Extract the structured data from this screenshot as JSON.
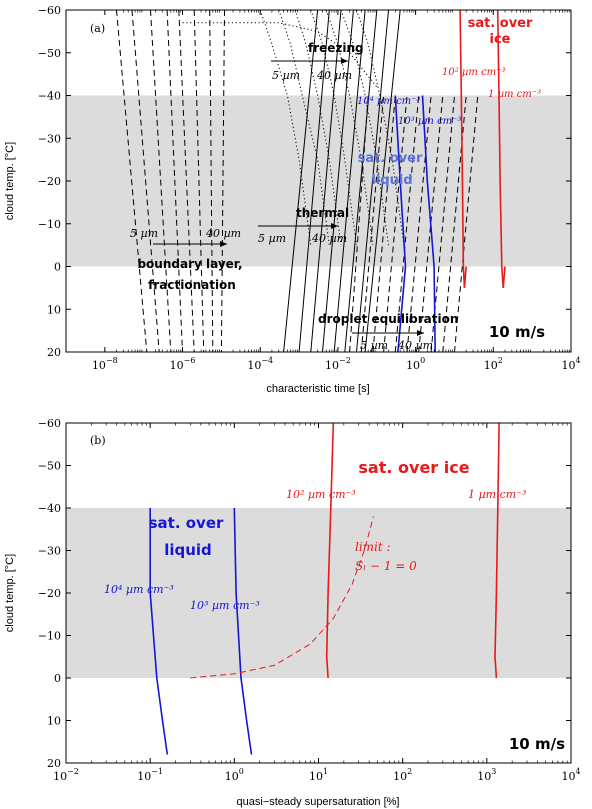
{
  "charts": [
    {
      "label": "(a)",
      "xlabel": "characteristic time [s]",
      "ylabel": "cloud temp. [°C]",
      "xscale": "log",
      "xlim": [
        1e-09,
        10000
      ],
      "ylim": [
        20,
        -60
      ],
      "xticks": [
        1e-08,
        1e-06,
        0.0001,
        0.01,
        1,
        100,
        10000
      ],
      "xtick_labels": [
        [
          "10",
          "−8"
        ],
        [
          "10",
          "−6"
        ],
        [
          "10",
          "−4"
        ],
        [
          "10",
          "−2"
        ],
        [
          "10",
          "0"
        ],
        [
          "10",
          "2"
        ],
        [
          "10",
          "4"
        ]
      ],
      "yticks": [
        -60,
        -50,
        -40,
        -30,
        -20,
        -10,
        0,
        10,
        20
      ],
      "ytick_labels": [
        "−60",
        "−50",
        "−40",
        "−30",
        "−20",
        "−10",
        "0",
        "10",
        "20"
      ],
      "shade_range": [
        0,
        -40
      ],
      "speed_label": "10 m/s",
      "colors": {
        "ice": "#e8191b",
        "liquid": "#1515d6",
        "liquid_text": "#5a72d8",
        "shade": "#dcdcdc"
      },
      "series": [
        {
          "name": "freezing",
          "style": "dotted",
          "color": "#000",
          "lines": [
            {
              "x": [
                0.0001,
                0.0002,
                0.0005,
                0.001,
                0.002
              ],
              "y": [
                -60,
                -52,
                -40,
                -25,
                -5
              ]
            },
            {
              "x": [
                0.0003,
                0.0006,
                0.0012,
                0.003,
                0.006
              ],
              "y": [
                -60,
                -52,
                -40,
                -25,
                -5
              ]
            },
            {
              "x": [
                0.0008,
                0.0015,
                0.003,
                0.006,
                0.012
              ],
              "y": [
                -60,
                -52,
                -40,
                -25,
                -5
              ]
            },
            {
              "x": [
                0.002,
                0.004,
                0.008,
                0.015,
                0.03
              ],
              "y": [
                -60,
                -52,
                -40,
                -25,
                -5
              ]
            },
            {
              "x": [
                0.005,
                0.01,
                0.02,
                0.04,
                0.08
              ],
              "y": [
                -60,
                -52,
                -40,
                -25,
                -5
              ]
            },
            {
              "x": [
                0.012,
                0.025,
                0.05,
                0.1,
                0.2
              ],
              "y": [
                -60,
                -52,
                -40,
                -25,
                -5
              ]
            },
            {
              "x": [
                0.03,
                0.06,
                0.12,
                0.25,
                0.5
              ],
              "y": [
                -60,
                -52,
                -40,
                -25,
                -5
              ]
            },
            {
              "x": [
                1e-06,
                0.0003,
                0.003,
                0.02,
                0.1
              ],
              "y": [
                -57,
                -57,
                -55,
                -50,
                -42
              ]
            }
          ]
        },
        {
          "name": "boundary layer",
          "style": "dashed",
          "color": "#000",
          "lines": [
            {
              "x": [
                2e-08,
                1.2e-07
              ],
              "y": [
                -60,
                20
              ]
            },
            {
              "x": [
                5e-08,
                2.5e-07
              ],
              "y": [
                -60,
                20
              ]
            },
            {
              "x": [
                1.5e-07,
                5e-07
              ],
              "y": [
                -60,
                20
              ]
            },
            {
              "x": [
                4e-07,
                1e-06
              ],
              "y": [
                -60,
                20
              ]
            },
            {
              "x": [
                8e-07,
                2e-06
              ],
              "y": [
                -60,
                20
              ]
            },
            {
              "x": [
                2e-06,
                3.5e-06
              ],
              "y": [
                -60,
                20
              ]
            },
            {
              "x": [
                5e-06,
                6e-06
              ],
              "y": [
                -60,
                20
              ]
            },
            {
              "x": [
                1.2e-05,
                1e-05
              ],
              "y": [
                -60,
                20
              ]
            }
          ]
        },
        {
          "name": "thermal",
          "style": "solid",
          "color": "#000",
          "lines": [
            {
              "x": [
                0.003,
                0.0004
              ],
              "y": [
                -60,
                20
              ]
            },
            {
              "x": [
                0.006,
                0.001
              ],
              "y": [
                -60,
                20
              ]
            },
            {
              "x": [
                0.012,
                0.002
              ],
              "y": [
                -60,
                20
              ]
            },
            {
              "x": [
                0.025,
                0.004
              ],
              "y": [
                -60,
                20
              ]
            },
            {
              "x": [
                0.05,
                0.008
              ],
              "y": [
                -60,
                20
              ]
            },
            {
              "x": [
                0.1,
                0.015
              ],
              "y": [
                -60,
                20
              ]
            },
            {
              "x": [
                0.2,
                0.03
              ],
              "y": [
                -60,
                20
              ]
            },
            {
              "x": [
                0.4,
                0.05
              ],
              "y": [
                -60,
                20
              ]
            }
          ]
        },
        {
          "name": "droplet equilibration",
          "style": "dashed",
          "color": "#000",
          "lines": [
            {
              "x": [
                0.02,
                0.06
              ],
              "y": [
                20,
                -40
              ]
            },
            {
              "x": [
                0.04,
                0.15
              ],
              "y": [
                20,
                -40
              ]
            },
            {
              "x": [
                0.08,
                0.3
              ],
              "y": [
                20,
                -40
              ]
            },
            {
              "x": [
                0.15,
                0.6
              ],
              "y": [
                20,
                -40
              ]
            },
            {
              "x": [
                0.3,
                1.2
              ],
              "y": [
                20,
                -40
              ]
            },
            {
              "x": [
                0.6,
                2.5
              ],
              "y": [
                20,
                -40
              ]
            },
            {
              "x": [
                1.2,
                5
              ],
              "y": [
                20,
                -40
              ]
            },
            {
              "x": [
                2.5,
                10
              ],
              "y": [
                20,
                -40
              ]
            },
            {
              "x": [
                5,
                20
              ],
              "y": [
                20,
                -40
              ]
            },
            {
              "x": [
                10,
                40
              ],
              "y": [
                20,
                -40
              ]
            }
          ]
        },
        {
          "name": "sat. over liquid",
          "style": "solid",
          "color": "#1515d6",
          "width": 1.6,
          "lines": [
            {
              "x": [
                0.3,
                0.4,
                0.55,
                0.35
              ],
              "y": [
                -40,
                -20,
                0,
                20
              ]
            },
            {
              "x": [
                1.5,
                2,
                3,
                3.2
              ],
              "y": [
                -40,
                -20,
                0,
                20
              ]
            }
          ]
        },
        {
          "name": "sat. over ice",
          "style": "solid",
          "color": "#e8191b",
          "width": 1.6,
          "lines": [
            {
              "x": [
                14,
                15,
                16,
                17,
                18,
                20
              ],
              "y": [
                -60,
                -40,
                -20,
                0,
                5,
                0
              ]
            },
            {
              "x": [
                130,
                140,
                150,
                165,
                180,
                200
              ],
              "y": [
                -60,
                -40,
                -20,
                0,
                5,
                0
              ]
            }
          ]
        }
      ],
      "annotations": {
        "freezing": "freezing",
        "boundary": "boundary layer,",
        "fractionation": "fractionation",
        "thermal": "thermal",
        "droplet": "droplet equilibration",
        "sat_liquid_1": "sat. over",
        "sat_liquid_2": "liquid",
        "sat_ice_1": "sat. over",
        "sat_ice_2": "ice",
        "ice_conc_hi": "10² µm cm⁻³",
        "ice_conc_lo": "1 µm cm⁻³",
        "liq_conc_hi": "10⁴ µm cm⁻³",
        "liq_conc_lo": "10³ µm cm⁻³",
        "size_small": "5 µm",
        "size_large": "40 µm"
      }
    },
    {
      "label": "(b)",
      "xlabel": "quasi−steady supersaturation [%]",
      "ylabel": "cloud temp. [°C]",
      "xscale": "log",
      "xlim": [
        0.01,
        10000
      ],
      "ylim": [
        20,
        -60
      ],
      "xticks": [
        0.01,
        0.1,
        1,
        10,
        100,
        1000,
        10000
      ],
      "xtick_labels": [
        [
          "10",
          "−2"
        ],
        [
          "10",
          "−1"
        ],
        [
          "10",
          "0"
        ],
        [
          "10",
          "1"
        ],
        [
          "10",
          "2"
        ],
        [
          "10",
          "3"
        ],
        [
          "10",
          "4"
        ]
      ],
      "yticks": [
        -60,
        -50,
        -40,
        -30,
        -20,
        -10,
        0,
        10,
        20
      ],
      "ytick_labels": [
        "−60",
        "−50",
        "−40",
        "−30",
        "−20",
        "−10",
        "0",
        "10",
        "20"
      ],
      "shade_range": [
        0,
        -40
      ],
      "speed_label": "10 m/s",
      "series": [
        {
          "name": "sat. over liquid",
          "style": "solid",
          "color": "#1515d6",
          "width": 1.6,
          "lines": [
            {
              "x": [
                0.1,
                0.1,
                0.12,
                0.14,
                0.16
              ],
              "y": [
                -40,
                -20,
                0,
                10,
                18
              ]
            },
            {
              "x": [
                1,
                1.05,
                1.2,
                1.4,
                1.6
              ],
              "y": [
                -40,
                -20,
                0,
                10,
                18
              ]
            }
          ]
        },
        {
          "name": "sat. over ice",
          "style": "solid",
          "color": "#e8191b",
          "width": 1.6,
          "lines": [
            {
              "x": [
                15,
                14,
                13,
                12.5,
                13
              ],
              "y": [
                -60,
                -40,
                -20,
                -5,
                0
              ]
            },
            {
              "x": [
                1400,
                1350,
                1300,
                1250,
                1300
              ],
              "y": [
                -60,
                -40,
                -20,
                -5,
                0
              ]
            }
          ]
        },
        {
          "name": "limit",
          "style": "dashed",
          "color": "#e8191b",
          "lines": [
            {
              "x": [
                0.3,
                1,
                3,
                8,
                15,
                25,
                35,
                45
              ],
              "y": [
                0,
                -1,
                -3,
                -8,
                -14,
                -22,
                -30,
                -38
              ]
            }
          ]
        }
      ],
      "annotations": {
        "sat_ice": "sat. over ice",
        "sat_liquid_1": "sat. over",
        "sat_liquid_2": "liquid",
        "ice_conc_hi": "10² µm cm⁻³",
        "ice_conc_lo": "1 µm cm⁻³",
        "liq_conc_hi": "10⁴ µm cm⁻³",
        "liq_conc_lo": "10³ µm cm⁻³",
        "limit_1": "limit :",
        "limit_2": "Sₗ − 1 = 0"
      }
    }
  ]
}
